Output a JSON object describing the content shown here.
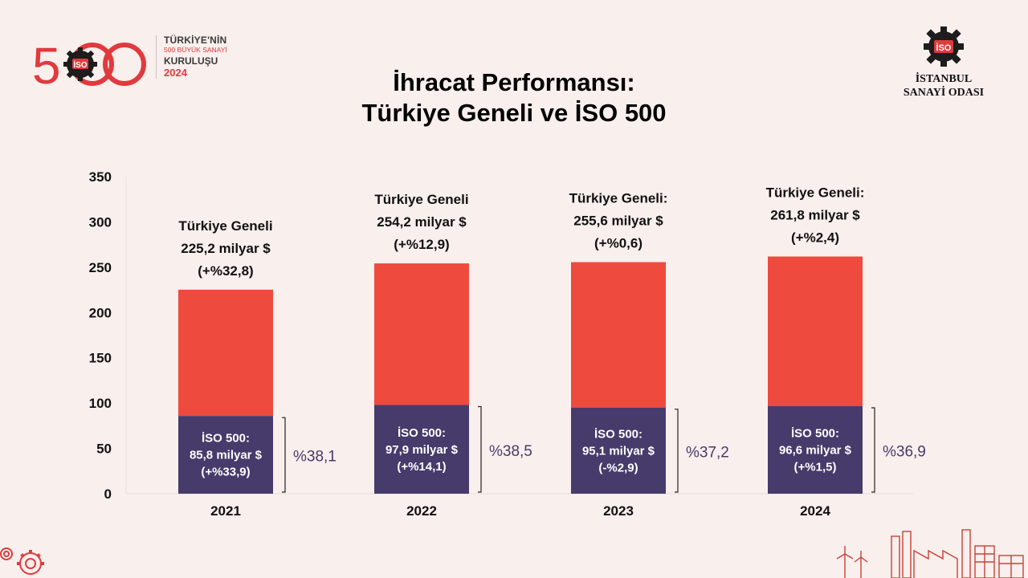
{
  "header": {
    "title_line1": "İhracat Performansı:",
    "title_line2": "Türkiye Geneli ve İSO 500",
    "left_logo": {
      "number": "500",
      "line1": "TÜRKİYE'NİN",
      "line2": "500 BÜYÜK SANAYİ",
      "line3": "KURULUŞU",
      "line4": "2024",
      "badge": "İSO"
    },
    "right_logo": {
      "badge": "İSO",
      "line1": "İSTANBUL",
      "line2": "SANAYİ ODASI"
    }
  },
  "colors": {
    "background": "#f9efed",
    "turkiye": "#ef4a3e",
    "iso500": "#463b6b",
    "share_text": "#463b6b",
    "brand_red": "#e03a3e"
  },
  "chart_data": {
    "type": "bar",
    "stacked": true,
    "categories": [
      "2021",
      "2022",
      "2023",
      "2024"
    ],
    "ylim": [
      0,
      350
    ],
    "yticks": [
      0,
      50,
      100,
      150,
      200,
      250,
      300,
      350
    ],
    "grid": false,
    "series": [
      {
        "values": [
          85.8,
          97.9,
          95.1,
          96.6
        ]
      },
      {
        "values": [
          139.4,
          156.3,
          160.5,
          165.2
        ]
      }
    ],
    "totals": [
      225.2,
      254.2,
      255.6,
      261.8
    ],
    "top_labels": [
      [
        "Türkiye Geneli",
        "225,2 milyar $",
        "(+%32,8)"
      ],
      [
        "Türkiye Geneli",
        "254,2 milyar $",
        "(+%12,9)"
      ],
      [
        "Türkiye Geneli:",
        "255,6 milyar $",
        "(+%0,6)"
      ],
      [
        "Türkiye Geneli:",
        "261,8 milyar $",
        "(+%2,4)"
      ]
    ],
    "inner_labels": [
      [
        "İSO 500:",
        "85,8 milyar $",
        "(+%33,9)"
      ],
      [
        "İSO 500:",
        "97,9 milyar $",
        "(+%14,1)"
      ],
      [
        "İSO 500:",
        "95,1 milyar $",
        "(-%2,9)"
      ],
      [
        "İSO 500:",
        "96,6 milyar $",
        "(+%1,5)"
      ]
    ],
    "share_labels": [
      "%38,1",
      "%38,5",
      "%37,2",
      "%36,9"
    ]
  }
}
